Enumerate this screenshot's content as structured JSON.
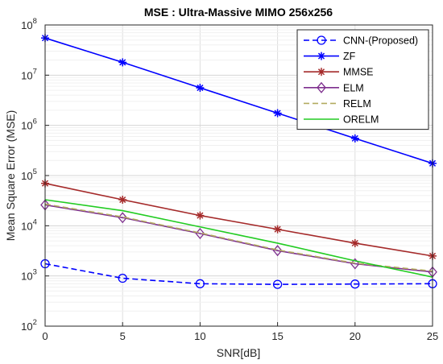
{
  "chart_data": {
    "type": "line",
    "title": "MSE : Ultra-Massive MIMO 256x256",
    "xlabel": "SNR[dB]",
    "ylabel": "Mean Square Error (MSE)",
    "x": [
      0,
      5,
      10,
      15,
      20,
      25
    ],
    "xlim": [
      0,
      25
    ],
    "ylim": [
      100,
      100000000
    ],
    "yscale": "log",
    "grid": true,
    "legend_position": "top-right",
    "xticks": [
      "0",
      "5",
      "10",
      "15",
      "20",
      "25"
    ],
    "yticks": [
      {
        "base": "10",
        "exp": "2"
      },
      {
        "base": "10",
        "exp": "3"
      },
      {
        "base": "10",
        "exp": "4"
      },
      {
        "base": "10",
        "exp": "5"
      },
      {
        "base": "10",
        "exp": "6"
      },
      {
        "base": "10",
        "exp": "7"
      },
      {
        "base": "10",
        "exp": "8"
      }
    ],
    "series": [
      {
        "name": "CNN-(Proposed)",
        "color": "#0000ff",
        "dash": "dashed",
        "marker": "circle",
        "values": [
          1750,
          900,
          700,
          680,
          690,
          700
        ]
      },
      {
        "name": "ZF",
        "color": "#0000ff",
        "dash": "solid",
        "marker": "star",
        "values": [
          55000000,
          18000000,
          5600000,
          1750000,
          550000,
          175000
        ]
      },
      {
        "name": "MMSE",
        "color": "#a52a2a",
        "dash": "solid",
        "marker": "asterisk",
        "values": [
          70000,
          33000,
          16000,
          8500,
          4500,
          2500
        ]
      },
      {
        "name": "ELM",
        "color": "#7e2f8e",
        "dash": "solid",
        "marker": "diamond",
        "values": [
          26000,
          14500,
          7000,
          3200,
          1750,
          1200
        ]
      },
      {
        "name": "RELM",
        "color": "#b3ab60",
        "dash": "dashed",
        "marker": "none",
        "values": [
          27000,
          15000,
          7200,
          3300,
          1800,
          1250
        ]
      },
      {
        "name": "ORELM",
        "color": "#22cc22",
        "dash": "solid",
        "marker": "none",
        "values": [
          33000,
          20000,
          9500,
          4500,
          2000,
          950
        ]
      }
    ]
  }
}
